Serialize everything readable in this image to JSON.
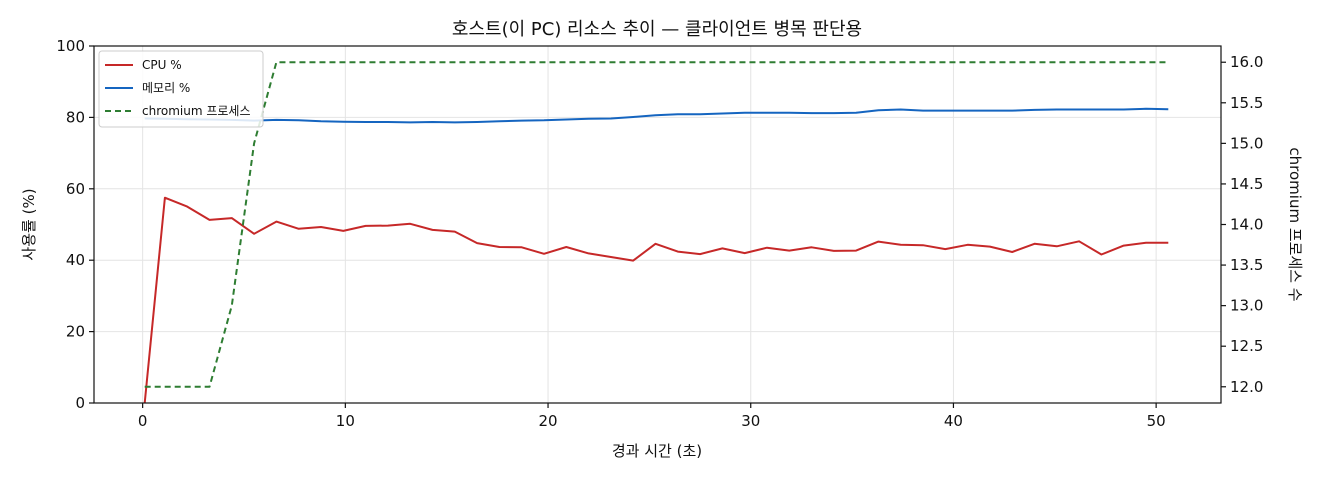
{
  "chart_data": {
    "type": "line",
    "title": "호스트(이 PC) 리소스 추이 — 클라이언트 병목 판단용",
    "xlabel": "경과 시간 (초)",
    "ylabel": "사용률 (%)",
    "y2label": "chromium 프로세스 수",
    "xlim": [
      -2.4,
      53.2
    ],
    "ylim": [
      0,
      100
    ],
    "y2lim": [
      11.8,
      16.2
    ],
    "xticks": [
      0,
      10,
      20,
      30,
      40,
      50
    ],
    "yticks": [
      0,
      20,
      40,
      60,
      80,
      100
    ],
    "y2ticks": [
      "12.0",
      "12.5",
      "13.0",
      "13.5",
      "14.0",
      "14.5",
      "15.0",
      "15.5",
      "16.0"
    ],
    "grid": true,
    "legend_position": "top-left",
    "series": [
      {
        "name": "CPU %",
        "axis": "left",
        "color": "#c62828",
        "style": "solid",
        "x": [
          0.1,
          1.1,
          2.2,
          3.3,
          4.4,
          5.5,
          6.6,
          7.7,
          8.8,
          9.9,
          11.0,
          12.1,
          13.2,
          14.3,
          15.4,
          16.5,
          17.6,
          18.7,
          19.8,
          20.9,
          22.0,
          23.1,
          24.2,
          25.3,
          26.4,
          27.5,
          28.6,
          29.7,
          30.8,
          31.9,
          33.0,
          34.1,
          35.2,
          36.3,
          37.4,
          38.5,
          39.6,
          40.7,
          41.8,
          42.9,
          44.0,
          45.1,
          46.2,
          47.3,
          48.4,
          49.5,
          50.6
        ],
        "values": [
          0,
          57.5,
          55.0,
          51.3,
          51.8,
          47.4,
          50.8,
          48.8,
          49.3,
          48.2,
          49.6,
          49.7,
          50.2,
          48.5,
          48.0,
          44.8,
          43.7,
          43.6,
          41.8,
          43.7,
          41.9,
          40.9,
          39.9,
          44.6,
          42.4,
          41.7,
          43.3,
          42.0,
          43.5,
          42.7,
          43.6,
          42.6,
          42.7,
          45.2,
          44.3,
          44.2,
          43.1,
          44.3,
          43.8,
          42.3,
          44.6,
          43.9,
          45.3,
          41.6,
          44.1,
          44.9,
          44.9
        ]
      },
      {
        "name": "메모리 %",
        "axis": "left",
        "color": "#1565c0",
        "style": "solid",
        "x": [
          0.1,
          1.1,
          2.2,
          3.3,
          4.4,
          5.5,
          6.6,
          7.7,
          8.8,
          9.9,
          11.0,
          12.1,
          13.2,
          14.3,
          15.4,
          16.5,
          17.6,
          18.7,
          19.8,
          20.9,
          22.0,
          23.1,
          24.2,
          25.3,
          26.4,
          27.5,
          28.6,
          29.7,
          30.8,
          31.9,
          33.0,
          34.1,
          35.2,
          36.3,
          37.4,
          38.5,
          39.6,
          40.7,
          41.8,
          42.9,
          44.0,
          45.1,
          46.2,
          47.3,
          48.4,
          49.5,
          50.6
        ],
        "values": [
          79.7,
          79.6,
          79.5,
          79.4,
          79.3,
          79.1,
          79.3,
          79.2,
          78.9,
          78.8,
          78.7,
          78.7,
          78.6,
          78.7,
          78.6,
          78.7,
          78.9,
          79.1,
          79.2,
          79.4,
          79.6,
          79.7,
          80.1,
          80.6,
          80.9,
          80.9,
          81.1,
          81.3,
          81.3,
          81.3,
          81.2,
          81.2,
          81.3,
          82.0,
          82.2,
          81.9,
          81.9,
          81.9,
          81.9,
          81.9,
          82.1,
          82.2,
          82.2,
          82.2,
          82.2,
          82.4,
          82.3
        ]
      },
      {
        "name": "chromium 프로세스",
        "axis": "right",
        "color": "#2e7d32",
        "style": "dashed",
        "x": [
          0.1,
          1.1,
          2.2,
          3.3,
          4.4,
          5.5,
          6.6,
          7.7,
          8.8,
          9.9,
          11.0,
          12.1,
          13.2,
          14.3,
          15.4,
          16.5,
          17.6,
          18.7,
          19.8,
          20.9,
          22.0,
          23.1,
          24.2,
          25.3,
          26.4,
          27.5,
          28.6,
          29.7,
          30.8,
          31.9,
          33.0,
          34.1,
          35.2,
          36.3,
          37.4,
          38.5,
          39.6,
          40.7,
          41.8,
          42.9,
          44.0,
          45.1,
          46.2,
          47.3,
          48.4,
          49.5,
          50.6
        ],
        "values": [
          12,
          12,
          12,
          12,
          13,
          15,
          16,
          16,
          16,
          16,
          16,
          16,
          16,
          16,
          16,
          16,
          16,
          16,
          16,
          16,
          16,
          16,
          16,
          16,
          16,
          16,
          16,
          16,
          16,
          16,
          16,
          16,
          16,
          16,
          16,
          16,
          16,
          16,
          16,
          16,
          16,
          16,
          16,
          16,
          16,
          16,
          16
        ]
      }
    ]
  }
}
